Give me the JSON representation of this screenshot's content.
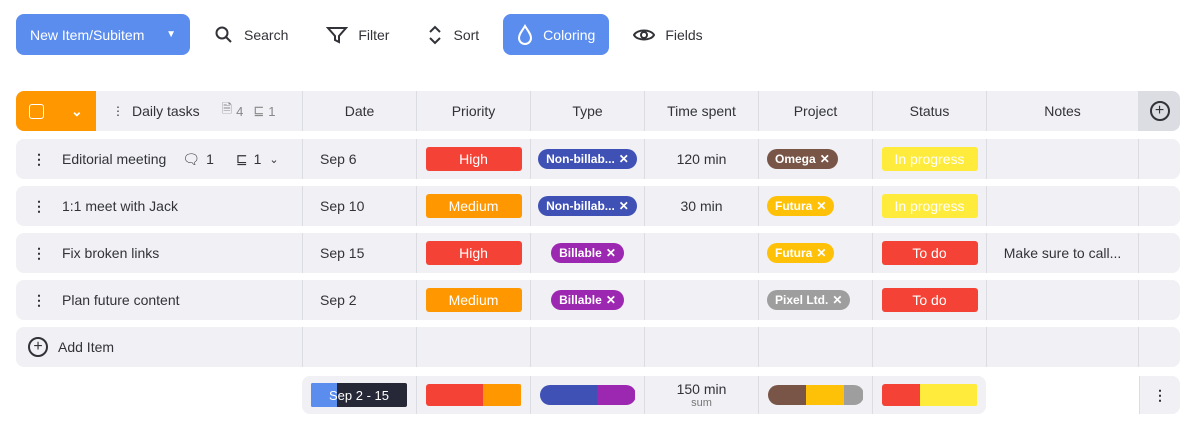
{
  "toolbar": {
    "new_item": "New Item/Subitem",
    "search": "Search",
    "filter": "Filter",
    "sort": "Sort",
    "coloring": "Coloring",
    "fields": "Fields"
  },
  "header": {
    "group": "Daily tasks",
    "doc_count": "4",
    "subitem_count": "1",
    "columns": [
      "Date",
      "Priority",
      "Type",
      "Time spent",
      "Project",
      "Status",
      "Notes"
    ]
  },
  "rows": [
    {
      "name": "Editorial meeting",
      "comments": "1",
      "subitems": "1",
      "date": "Sep 6",
      "priority": "High",
      "priority_color": "#f44336",
      "type": "Non-billab...",
      "type_color": "#3f51b5",
      "time": "120 min",
      "project": "Omega",
      "project_color": "#795548",
      "status": "In progress",
      "status_color": "#ffeb3b",
      "notes": ""
    },
    {
      "name": "1:1 meet with Jack",
      "date": "Sep 10",
      "priority": "Medium",
      "priority_color": "#ff9800",
      "type": "Non-billab...",
      "type_color": "#3f51b5",
      "time": "30 min",
      "project": "Futura",
      "project_color": "#ffc107",
      "status": "In progress",
      "status_color": "#ffeb3b",
      "notes": ""
    },
    {
      "name": "Fix broken links",
      "date": "Sep 15",
      "priority": "High",
      "priority_color": "#f44336",
      "type": "Billable",
      "type_color": "#9c27b0",
      "time": "",
      "project": "Futura",
      "project_color": "#ffc107",
      "status": "To do",
      "status_color": "#f44336",
      "notes": "Make sure to call..."
    },
    {
      "name": "Plan future content",
      "date": "Sep 2",
      "priority": "Medium",
      "priority_color": "#ff9800",
      "type": "Billable",
      "type_color": "#9c27b0",
      "time": "",
      "project": "Pixel Ltd.",
      "project_color": "#9e9e9e",
      "status": "To do",
      "status_color": "#f44336",
      "notes": ""
    }
  ],
  "add_item": "Add Item",
  "summary": {
    "date_range": "Sep 2 - 15",
    "time_total": "150 min",
    "time_label": "sum",
    "priority": [
      [
        "#f44336",
        60
      ],
      [
        "#ff9800",
        40
      ]
    ],
    "type": [
      [
        "#3f51b5",
        60
      ],
      [
        "#9c27b0",
        40
      ]
    ],
    "project": [
      [
        "#795548",
        40
      ],
      [
        "#ffc107",
        40
      ],
      [
        "#9e9e9e",
        20
      ]
    ],
    "status": [
      [
        "#f44336",
        40
      ],
      [
        "#ffeb3b",
        60
      ]
    ]
  }
}
